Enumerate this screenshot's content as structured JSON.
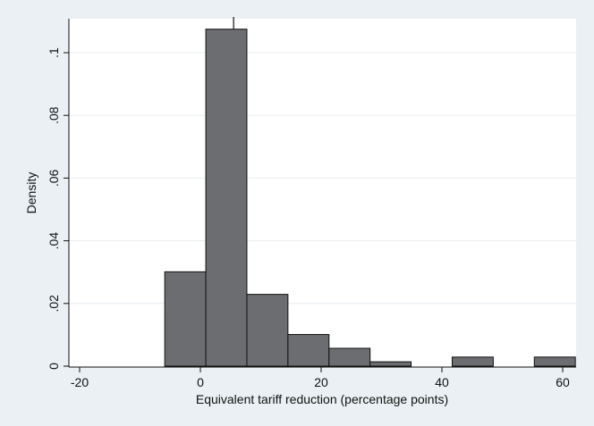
{
  "chart_data": {
    "type": "bar",
    "subtype": "histogram",
    "xlabel": "Equivalent tariff reduction (percentage points)",
    "ylabel": "Density",
    "xlim": [
      -22,
      62
    ],
    "ylim": [
      0,
      0.111
    ],
    "x_ticks": [
      -20,
      0,
      20,
      40,
      60
    ],
    "x_tick_labels": [
      "-20",
      "0",
      "20",
      "40",
      "60"
    ],
    "y_ticks": [
      0,
      0.02,
      0.04,
      0.06,
      0.08,
      0.1
    ],
    "y_tick_labels": [
      "0",
      ".02",
      ".04",
      ".06",
      ".08",
      ".1"
    ],
    "grid": true,
    "bin_width": 6.8,
    "bins": [
      {
        "x0": -5.9,
        "x1": 0.9,
        "value": 0.0301
      },
      {
        "x0": 0.9,
        "x1": 7.7,
        "value": 0.1075
      },
      {
        "x0": 7.7,
        "x1": 14.5,
        "value": 0.0229
      },
      {
        "x0": 14.5,
        "x1": 21.3,
        "value": 0.0101
      },
      {
        "x0": 21.3,
        "x1": 28.1,
        "value": 0.0057
      },
      {
        "x0": 28.1,
        "x1": 34.9,
        "value": 0.0014
      },
      {
        "x0": 34.9,
        "x1": 41.7,
        "value": 0
      },
      {
        "x0": 41.7,
        "x1": 48.5,
        "value": 0.0029
      },
      {
        "x0": 48.5,
        "x1": 55.3,
        "value": 0
      },
      {
        "x0": 55.3,
        "x1": 62.1,
        "value": 0.0029
      }
    ],
    "reference_line_x": 5.5,
    "colors": {
      "bar_fill": "#6b6d70",
      "bar_stroke": "#111111",
      "plot_background": "#ffffff",
      "outer_background": "#eaf0f3",
      "grid": "#e8edf0",
      "axis": "#111111"
    }
  }
}
